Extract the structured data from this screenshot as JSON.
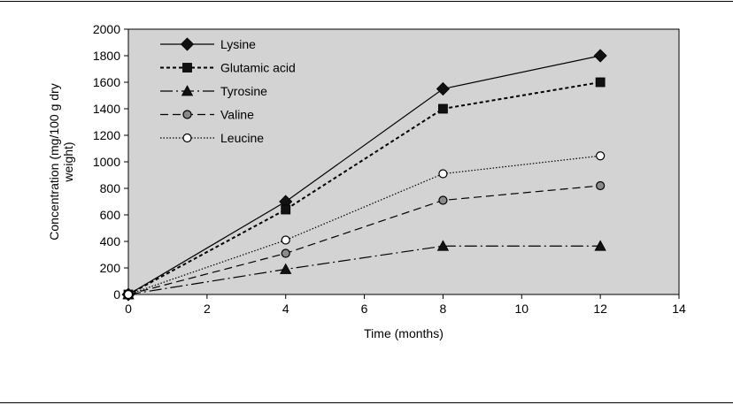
{
  "chart_data": {
    "type": "line",
    "title": "",
    "xlabel": "Time (months)",
    "ylabel_lines": [
      "Concentration (mg/100 g dry",
      "weight)"
    ],
    "x_ticks": [
      "0",
      "2",
      "4",
      "6",
      "8",
      "10",
      "12",
      "14"
    ],
    "y_ticks": [
      "0",
      "200",
      "400",
      "600",
      "800",
      "1000",
      "1200",
      "1400",
      "1600",
      "1800",
      "2000"
    ],
    "xlim": [
      0,
      14
    ],
    "ylim": [
      0,
      2000
    ],
    "grid": false,
    "legend_position": "top-left",
    "plot_background": "#d3d3d3",
    "x": [
      0,
      4,
      8,
      12
    ],
    "series": [
      {
        "name": "Lysine",
        "values": [
          0,
          700,
          1550,
          1800
        ],
        "line": "solid",
        "marker": "diamond",
        "marker_fill": "#111111"
      },
      {
        "name": "Glutamic acid",
        "values": [
          0,
          640,
          1400,
          1600
        ],
        "line": "dotted-heavy",
        "marker": "square",
        "marker_fill": "#111111"
      },
      {
        "name": "Tyrosine",
        "values": [
          0,
          190,
          365,
          365
        ],
        "line": "long-dash",
        "marker": "triangle",
        "marker_fill": "#111111"
      },
      {
        "name": "Valine",
        "values": [
          0,
          310,
          710,
          820
        ],
        "line": "dash",
        "marker": "circle",
        "marker_fill": "#8a8a8a"
      },
      {
        "name": "Leucine",
        "values": [
          0,
          410,
          910,
          1045
        ],
        "line": "dotted",
        "marker": "circle",
        "marker_fill": "#ffffff"
      }
    ]
  }
}
